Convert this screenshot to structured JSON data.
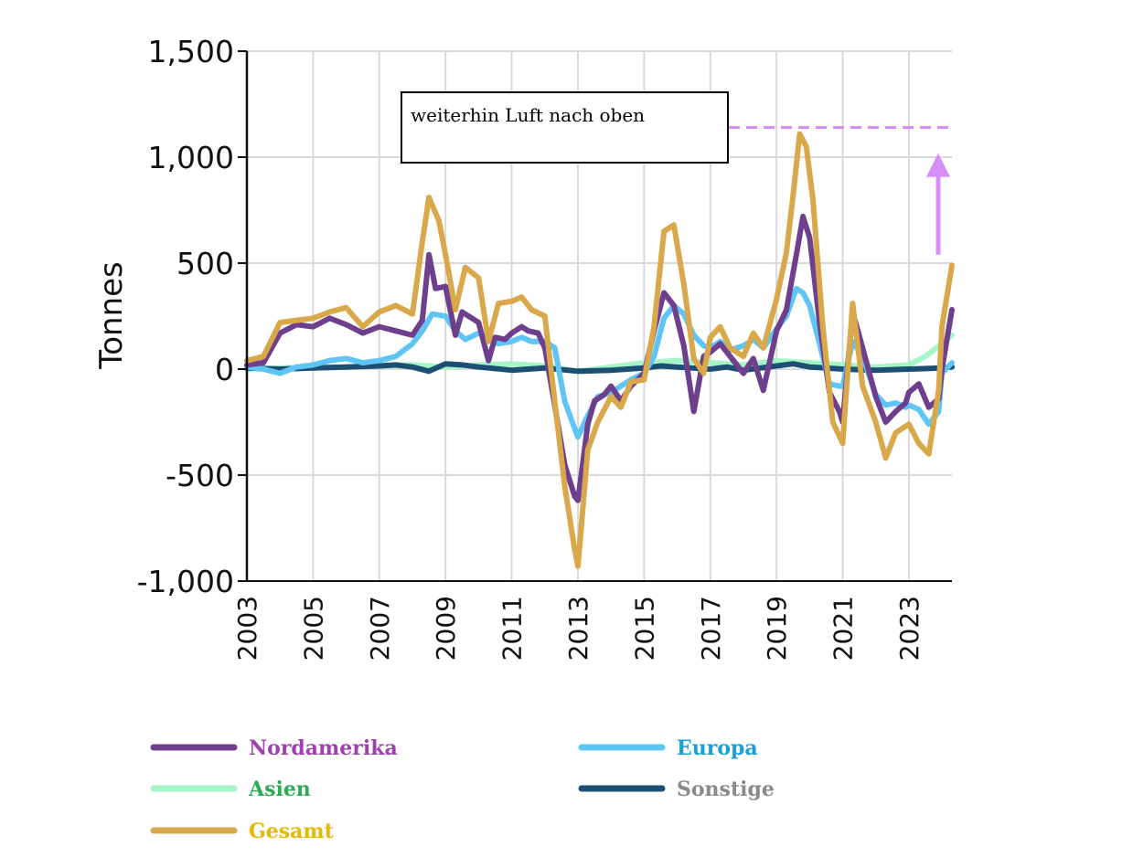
{
  "chart_data": {
    "type": "line",
    "ylabel": "Tonnes",
    "xlabel": "",
    "ylim": [
      -1000,
      1500
    ],
    "xlim": [
      2003,
      2024.3
    ],
    "yticks": [
      {
        "value": 1500,
        "label": "1,500"
      },
      {
        "value": 1000,
        "label": "1,000"
      },
      {
        "value": 500,
        "label": "500"
      },
      {
        "value": 0,
        "label": "0"
      },
      {
        "value": -500,
        "label": "-500"
      },
      {
        "value": -1000,
        "label": "-1,000"
      }
    ],
    "xticks": [
      "2003",
      "2005",
      "2007",
      "2009",
      "2011",
      "2013",
      "2015",
      "2017",
      "2019",
      "2021",
      "2023"
    ],
    "grid": true,
    "annotation": {
      "text": "weiterhin Luft nach oben",
      "reference_value": 1140,
      "arrow_from": 540,
      "arrow_to": 1010,
      "color": "#d58ef5"
    },
    "legend_position": "bottom",
    "series": [
      {
        "name": "Nordamerika",
        "color": "#6e3f8c",
        "legend_text_color": "#a040b0",
        "x": [
          2003.0,
          2003.5,
          2004.0,
          2004.5,
          2005.0,
          2005.5,
          2006.0,
          2006.5,
          2007.0,
          2007.5,
          2008.0,
          2008.3,
          2008.5,
          2008.7,
          2009.0,
          2009.3,
          2009.5,
          2010.0,
          2010.3,
          2010.5,
          2010.8,
          2011.0,
          2011.3,
          2011.5,
          2011.8,
          2012.0,
          2012.3,
          2012.6,
          2012.9,
          2013.0,
          2013.3,
          2013.5,
          2013.8,
          2014.0,
          2014.3,
          2014.6,
          2015.0,
          2015.3,
          2015.6,
          2015.9,
          2016.2,
          2016.5,
          2016.8,
          2017.0,
          2017.3,
          2017.6,
          2018.0,
          2018.3,
          2018.6,
          2019.0,
          2019.3,
          2019.6,
          2019.8,
          2020.0,
          2020.3,
          2020.6,
          2020.9,
          2021.0,
          2021.3,
          2021.6,
          2022.0,
          2022.3,
          2022.6,
          2022.9,
          2023.0,
          2023.3,
          2023.6,
          2023.9,
          2024.0,
          2024.3
        ],
        "y": [
          20,
          30,
          170,
          210,
          200,
          240,
          210,
          170,
          200,
          180,
          160,
          230,
          540,
          380,
          390,
          160,
          270,
          220,
          40,
          150,
          140,
          170,
          200,
          180,
          170,
          100,
          -170,
          -450,
          -600,
          -620,
          -260,
          -150,
          -120,
          -80,
          -150,
          -80,
          -20,
          180,
          360,
          300,
          110,
          -200,
          60,
          80,
          120,
          60,
          -20,
          50,
          -100,
          180,
          280,
          540,
          720,
          620,
          220,
          -110,
          -200,
          -250,
          270,
          100,
          -130,
          -250,
          -200,
          -160,
          -110,
          -70,
          -180,
          -140,
          0,
          280
        ]
      },
      {
        "name": "Europa",
        "color": "#5ec5f5",
        "legend_text_color": "#1aa0d8",
        "x": [
          2003.0,
          2003.5,
          2004.0,
          2004.5,
          2005.0,
          2005.5,
          2006.0,
          2006.5,
          2007.0,
          2007.5,
          2008.0,
          2008.3,
          2008.6,
          2009.0,
          2009.3,
          2009.6,
          2010.0,
          2010.3,
          2010.6,
          2011.0,
          2011.3,
          2011.6,
          2012.0,
          2012.3,
          2012.6,
          2012.9,
          2013.0,
          2013.3,
          2013.6,
          2014.0,
          2014.3,
          2014.6,
          2015.0,
          2015.3,
          2015.6,
          2015.9,
          2016.2,
          2016.5,
          2016.8,
          2017.0,
          2017.3,
          2017.6,
          2018.0,
          2018.3,
          2018.6,
          2019.0,
          2019.3,
          2019.6,
          2019.8,
          2020.0,
          2020.3,
          2020.6,
          2020.9,
          2021.0,
          2021.3,
          2021.6,
          2022.0,
          2022.3,
          2022.6,
          2022.9,
          2023.0,
          2023.3,
          2023.6,
          2023.9,
          2024.0,
          2024.3
        ],
        "y": [
          10,
          0,
          -20,
          10,
          20,
          40,
          50,
          30,
          40,
          60,
          120,
          180,
          260,
          250,
          180,
          140,
          170,
          150,
          120,
          130,
          150,
          130,
          130,
          100,
          -150,
          -280,
          -320,
          -220,
          -130,
          -110,
          -80,
          -50,
          -20,
          60,
          240,
          300,
          260,
          160,
          110,
          100,
          130,
          90,
          110,
          140,
          100,
          190,
          250,
          380,
          360,
          300,
          120,
          -70,
          -80,
          -80,
          130,
          60,
          -120,
          -170,
          -160,
          -180,
          -170,
          -190,
          -260,
          -200,
          -20,
          30
        ]
      },
      {
        "name": "Asien",
        "color": "#a6f5c6",
        "legend_text_color": "#2eaa55",
        "x": [
          2003.0,
          2004.0,
          2005.0,
          2006.0,
          2007.0,
          2008.0,
          2009.0,
          2010.0,
          2011.0,
          2012.0,
          2013.0,
          2014.0,
          2015.0,
          2016.0,
          2017.0,
          2018.0,
          2019.0,
          2020.0,
          2021.0,
          2022.0,
          2023.0,
          2023.5,
          2024.0,
          2024.3
        ],
        "y": [
          0,
          5,
          10,
          10,
          15,
          20,
          10,
          20,
          25,
          15,
          -10,
          10,
          30,
          40,
          30,
          20,
          40,
          30,
          20,
          10,
          20,
          60,
          120,
          160
        ]
      },
      {
        "name": "Sonstige",
        "color": "#1d4f75",
        "legend_text_color": "#8a8a8a",
        "x": [
          2003.0,
          2004.0,
          2005.0,
          2006.0,
          2007.0,
          2007.5,
          2008.0,
          2008.5,
          2009.0,
          2009.5,
          2010.0,
          2011.0,
          2012.0,
          2013.0,
          2014.0,
          2015.0,
          2015.5,
          2016.0,
          2017.0,
          2017.5,
          2018.0,
          2019.0,
          2019.5,
          2020.0,
          2021.0,
          2022.0,
          2023.0,
          2024.0,
          2024.3
        ],
        "y": [
          5,
          0,
          5,
          10,
          15,
          20,
          10,
          -10,
          25,
          20,
          10,
          -5,
          5,
          -10,
          -5,
          5,
          15,
          10,
          0,
          10,
          -5,
          15,
          25,
          10,
          0,
          -5,
          0,
          5,
          10
        ]
      },
      {
        "name": "Gesamt",
        "color": "#d8a84a",
        "legend_text_color": "#e6b800",
        "x": [
          2003.0,
          2003.5,
          2004.0,
          2004.5,
          2005.0,
          2005.5,
          2006.0,
          2006.5,
          2007.0,
          2007.5,
          2008.0,
          2008.3,
          2008.5,
          2008.8,
          2009.0,
          2009.3,
          2009.6,
          2010.0,
          2010.3,
          2010.6,
          2011.0,
          2011.3,
          2011.6,
          2012.0,
          2012.3,
          2012.6,
          2012.9,
          2013.0,
          2013.3,
          2013.6,
          2014.0,
          2014.3,
          2014.6,
          2015.0,
          2015.3,
          2015.6,
          2015.9,
          2016.2,
          2016.5,
          2016.8,
          2017.0,
          2017.3,
          2017.6,
          2018.0,
          2018.3,
          2018.6,
          2019.0,
          2019.3,
          2019.5,
          2019.7,
          2019.9,
          2020.1,
          2020.4,
          2020.7,
          2021.0,
          2021.3,
          2021.6,
          2022.0,
          2022.3,
          2022.6,
          2022.9,
          2023.0,
          2023.3,
          2023.6,
          2023.9,
          2024.0,
          2024.3
        ],
        "y": [
          40,
          60,
          220,
          230,
          240,
          270,
          290,
          200,
          270,
          300,
          260,
          600,
          810,
          700,
          540,
          280,
          480,
          430,
          130,
          310,
          320,
          340,
          280,
          250,
          -150,
          -550,
          -850,
          -930,
          -380,
          -250,
          -130,
          -180,
          -60,
          -50,
          200,
          650,
          680,
          400,
          50,
          -20,
          150,
          200,
          100,
          60,
          170,
          100,
          330,
          550,
          820,
          1110,
          1050,
          800,
          200,
          -250,
          -350,
          310,
          -80,
          -250,
          -420,
          -300,
          -270,
          -260,
          -350,
          -400,
          -100,
          200,
          490
        ]
      }
    ]
  }
}
